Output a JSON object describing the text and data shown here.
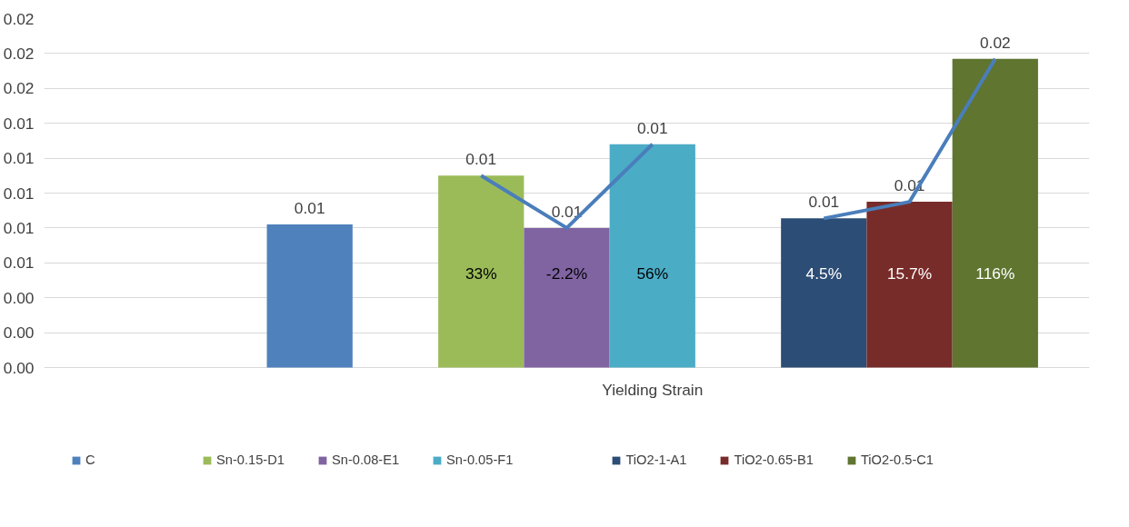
{
  "chart_data": {
    "type": "bar",
    "categories": [
      "Yielding Strain"
    ],
    "ylim": [
      0,
      0.02
    ],
    "yticks": [
      {
        "value": 0,
        "label": "0.00"
      },
      {
        "value": 0.002,
        "label": "0.00"
      },
      {
        "value": 0.004,
        "label": "0.00"
      },
      {
        "value": 0.006,
        "label": "0.01"
      },
      {
        "value": 0.008,
        "label": "0.01"
      },
      {
        "value": 0.01,
        "label": "0.01"
      },
      {
        "value": 0.012,
        "label": "0.01"
      },
      {
        "value": 0.014,
        "label": "0.01"
      },
      {
        "value": 0.016,
        "label": "0.02"
      },
      {
        "value": 0.018,
        "label": "0.02"
      },
      {
        "value": 0.02,
        "label": "0.02"
      }
    ],
    "grid": "y",
    "legend": "bottom",
    "annotations": [
      "33%",
      "-2.2%",
      "56%",
      "4.5%",
      "15.7%",
      "116%"
    ],
    "series": [
      {
        "name": "C",
        "color": "#4f81bd",
        "values": [
          0.0082
        ],
        "value_labels": [
          "0.01"
        ]
      },
      {
        "color": "#c0504d",
        "values": [
          null
        ]
      },
      {
        "name": "Sn-0.15-D1",
        "color": "#9bbb59",
        "values": [
          0.011
        ],
        "value_labels": [
          "0.01"
        ]
      },
      {
        "name": "Sn-0.08-E1",
        "color": "#8064a2",
        "values": [
          0.008
        ],
        "value_labels": [
          "0.01"
        ]
      },
      {
        "name": "Sn-0.05-F1",
        "color": "#4bacc6",
        "values": [
          0.0128
        ],
        "value_labels": [
          "0.01"
        ]
      },
      {
        "color": "#f79646",
        "values": [
          null
        ]
      },
      {
        "name": "TiO2-1-A1",
        "color": "#2c4d75",
        "values": [
          0.00855
        ],
        "value_labels": [
          "0.01"
        ]
      },
      {
        "name": "TiO2-0.65-B1",
        "color": "#772c2a",
        "values": [
          0.0095
        ],
        "value_labels": [
          "0.01"
        ]
      },
      {
        "name": "TiO2-0.5-C1",
        "color": "#5f7530",
        "values": [
          0.0177
        ],
        "value_labels": [
          "0.02"
        ]
      }
    ]
  }
}
